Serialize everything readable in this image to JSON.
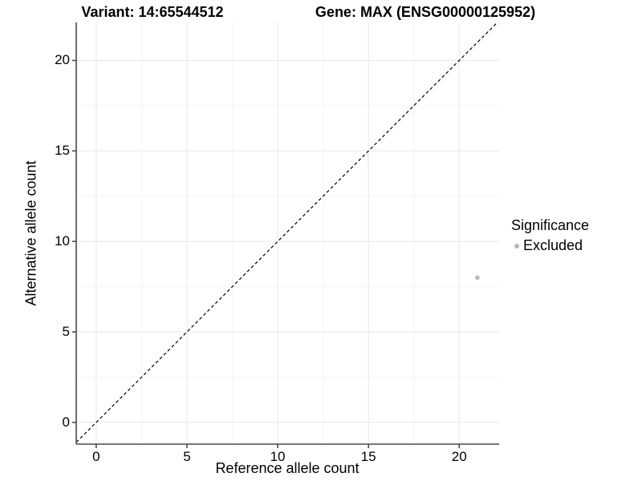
{
  "header": {
    "variant_title": "Variant: 14:65544512",
    "gene_title": "Gene: MAX (ENSG00000125952)"
  },
  "chart_data": {
    "type": "scatter",
    "title": "Variant: 14:65544512 / Gene: MAX (ENSG00000125952)",
    "xlabel": "Reference allele count",
    "ylabel": "Alternative allele count",
    "xticks": [
      0,
      5,
      10,
      15,
      20
    ],
    "yticks": [
      0,
      5,
      10,
      15,
      20
    ],
    "minor_gridlines": [
      2.5,
      7.5,
      12.5,
      17.5
    ],
    "xlim": [
      -1.1,
      22.2
    ],
    "ylim": [
      -1.2,
      22.1
    ],
    "grid": "major+minor",
    "series": [
      {
        "name": "Excluded",
        "color": "#b9b9b9",
        "points": [
          {
            "x": 21,
            "y": 8
          }
        ]
      }
    ],
    "reference_line": {
      "equation": "y = x",
      "style": "dashed",
      "color": "#000000"
    },
    "legend": {
      "title": "Significance",
      "position": "right",
      "entries": [
        {
          "label": "Excluded",
          "color": "#b9b9b9",
          "marker": "circle"
        }
      ]
    }
  },
  "colors": {
    "background": "#ffffff",
    "axis_line": "#4a4a4a",
    "grid_major": "#ececec",
    "grid_minor": "#f5f5f5",
    "point": "#b9b9b9",
    "text": "#000000"
  }
}
